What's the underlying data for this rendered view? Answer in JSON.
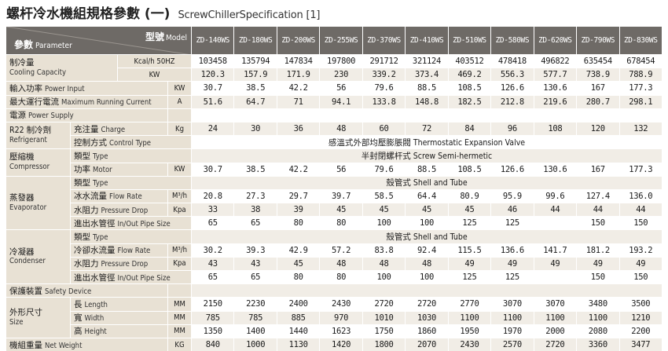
{
  "title": {
    "zh": "螺杆冷水機組規格參數 (一)",
    "en": "ScrewChillerSpecification [1]"
  },
  "header": {
    "param_zh": "參數",
    "param_en": "Parameter",
    "model_zh": "型號",
    "model_en": "Model"
  },
  "models": [
    "ZD-140WS",
    "ZD-180WS",
    "ZD-200WS",
    "ZD-255WS",
    "ZD-370WS",
    "ZD-410WS",
    "ZD-510WS",
    "ZD-580WS",
    "ZD-620WS",
    "ZD-790WS",
    "ZD-830WS"
  ],
  "cooling": {
    "cat_zh": "制冷量",
    "cat_en": "Cooling Capacity",
    "unit1": "Kcal/h 50HZ",
    "vals1": [
      "103458",
      "135794",
      "147834",
      "197800",
      "291712",
      "321124",
      "403512",
      "478418",
      "496822",
      "635454",
      "678454"
    ],
    "unit2": "KW",
    "vals2": [
      "120.3",
      "157.9",
      "171.9",
      "230",
      "339.2",
      "373.4",
      "469.2",
      "556.3",
      "577.7",
      "738.9",
      "788.9"
    ]
  },
  "power_input": {
    "zh": "輸入功率",
    "en": "Power Input",
    "unit": "KW",
    "vals": [
      "30.7",
      "38.5",
      "42.2",
      "56",
      "79.6",
      "88.5",
      "108.5",
      "126.6",
      "130.6",
      "167",
      "177.3"
    ]
  },
  "max_current": {
    "zh": "最大運行電流",
    "en": "Maximum Running Current",
    "unit": "A",
    "vals": [
      "51.6",
      "64.7",
      "71",
      "94.1",
      "133.8",
      "148.8",
      "182.5",
      "212.8",
      "219.6",
      "280.7",
      "298.1"
    ]
  },
  "power_supply": {
    "zh": "電源",
    "en": "Power Supply"
  },
  "refrigerant": {
    "cat_zh": "R22 制冷劑",
    "cat_en": "Refrigerant",
    "charge_zh": "充注量",
    "charge_en": "Charge",
    "charge_unit": "Kg",
    "charge_vals": [
      "24",
      "30",
      "36",
      "48",
      "60",
      "72",
      "84",
      "96",
      "108",
      "120",
      "132"
    ],
    "control_zh": "控制方式",
    "control_en": "Control Type",
    "control_val": "感溫式外部均壓膨脹閥 Thermostatic Expansion Valve"
  },
  "compressor": {
    "cat_zh": "壓縮機",
    "cat_en": "Compressor",
    "type_zh": "類型",
    "type_en": "Type",
    "type_val": "半封閉螺杆式 Screw Semi-hermetic",
    "motor_zh": "功率",
    "motor_en": "Motor",
    "motor_unit": "KW",
    "motor_vals": [
      "30.7",
      "38.5",
      "42.2",
      "56",
      "79.6",
      "88.5",
      "108.5",
      "126.6",
      "130.6",
      "167",
      "177.3"
    ]
  },
  "evaporator": {
    "cat_zh": "蒸發器",
    "cat_en": "Evaporator",
    "type_zh": "類型",
    "type_en": "Type",
    "type_val": "殼管式 Shell and Tube",
    "flow_zh": "冰水流量",
    "flow_en": "Flow Rate",
    "flow_unit": "M³/h",
    "flow_vals": [
      "20.8",
      "27.3",
      "29.7",
      "39.7",
      "58.5",
      "64.4",
      "80.9",
      "95.9",
      "99.6",
      "127.4",
      "136.0"
    ],
    "drop_zh": "水阻力",
    "drop_en": "Pressure Drop",
    "drop_unit": "Kpa",
    "drop_vals": [
      "33",
      "38",
      "39",
      "45",
      "45",
      "45",
      "45",
      "46",
      "44",
      "44",
      "44"
    ],
    "pipe_zh": "進出水管徑",
    "pipe_en": "In/Out Pipe Size",
    "pipe_vals": [
      "65",
      "65",
      "80",
      "80",
      "100",
      "100",
      "125",
      "125",
      "",
      "150",
      "150"
    ]
  },
  "condenser": {
    "cat_zh": "冷凝器",
    "cat_en": "Condenser",
    "type_zh": "類型",
    "type_en": "Type",
    "type_val": "殼管式 Shell and Tube",
    "flow_zh": "冷卻水流量",
    "flow_en": "Flow Rate",
    "flow_unit": "M³/h",
    "flow_vals": [
      "30.2",
      "39.3",
      "42.9",
      "57.2",
      "83.8",
      "92.4",
      "115.5",
      "136.6",
      "141.7",
      "181.2",
      "193.2"
    ],
    "drop_zh": "水阻力",
    "drop_en": "Pressure Drop",
    "drop_unit": "Kpa",
    "drop_vals": [
      "43",
      "43",
      "45",
      "48",
      "48",
      "48",
      "49",
      "49",
      "49",
      "49",
      "49"
    ],
    "pipe_zh": "進出水管徑",
    "pipe_en": "In/Out Pipe Size",
    "pipe_vals": [
      "65",
      "65",
      "80",
      "80",
      "100",
      "100",
      "125",
      "125",
      "",
      "150",
      "150"
    ]
  },
  "safety": {
    "zh": "保護裝置",
    "en": "Safety Device"
  },
  "size": {
    "cat_zh": "外形尺寸",
    "cat_en": "Size",
    "length_zh": "長",
    "length_en": "Length",
    "length_unit": "MM",
    "length_vals": [
      "2150",
      "2230",
      "2400",
      "2430",
      "2720",
      "2720",
      "2770",
      "3070",
      "3070",
      "3480",
      "3500"
    ],
    "width_zh": "寬",
    "width_en": "Width",
    "width_unit": "MM",
    "width_vals": [
      "785",
      "785",
      "885",
      "970",
      "1010",
      "1030",
      "1100",
      "1100",
      "1100",
      "1100",
      "1210"
    ],
    "height_zh": "高",
    "height_en": "Height",
    "height_unit": "MM",
    "height_vals": [
      "1350",
      "1400",
      "1440",
      "1623",
      "1750",
      "1860",
      "1950",
      "1970",
      "2000",
      "2080",
      "2200"
    ]
  },
  "weight": {
    "zh": "機組重量",
    "en": "Net Weight",
    "unit": "KG",
    "vals": [
      "840",
      "1000",
      "1130",
      "1420",
      "1800",
      "2070",
      "2430",
      "2570",
      "2720",
      "3360",
      "3477"
    ]
  }
}
